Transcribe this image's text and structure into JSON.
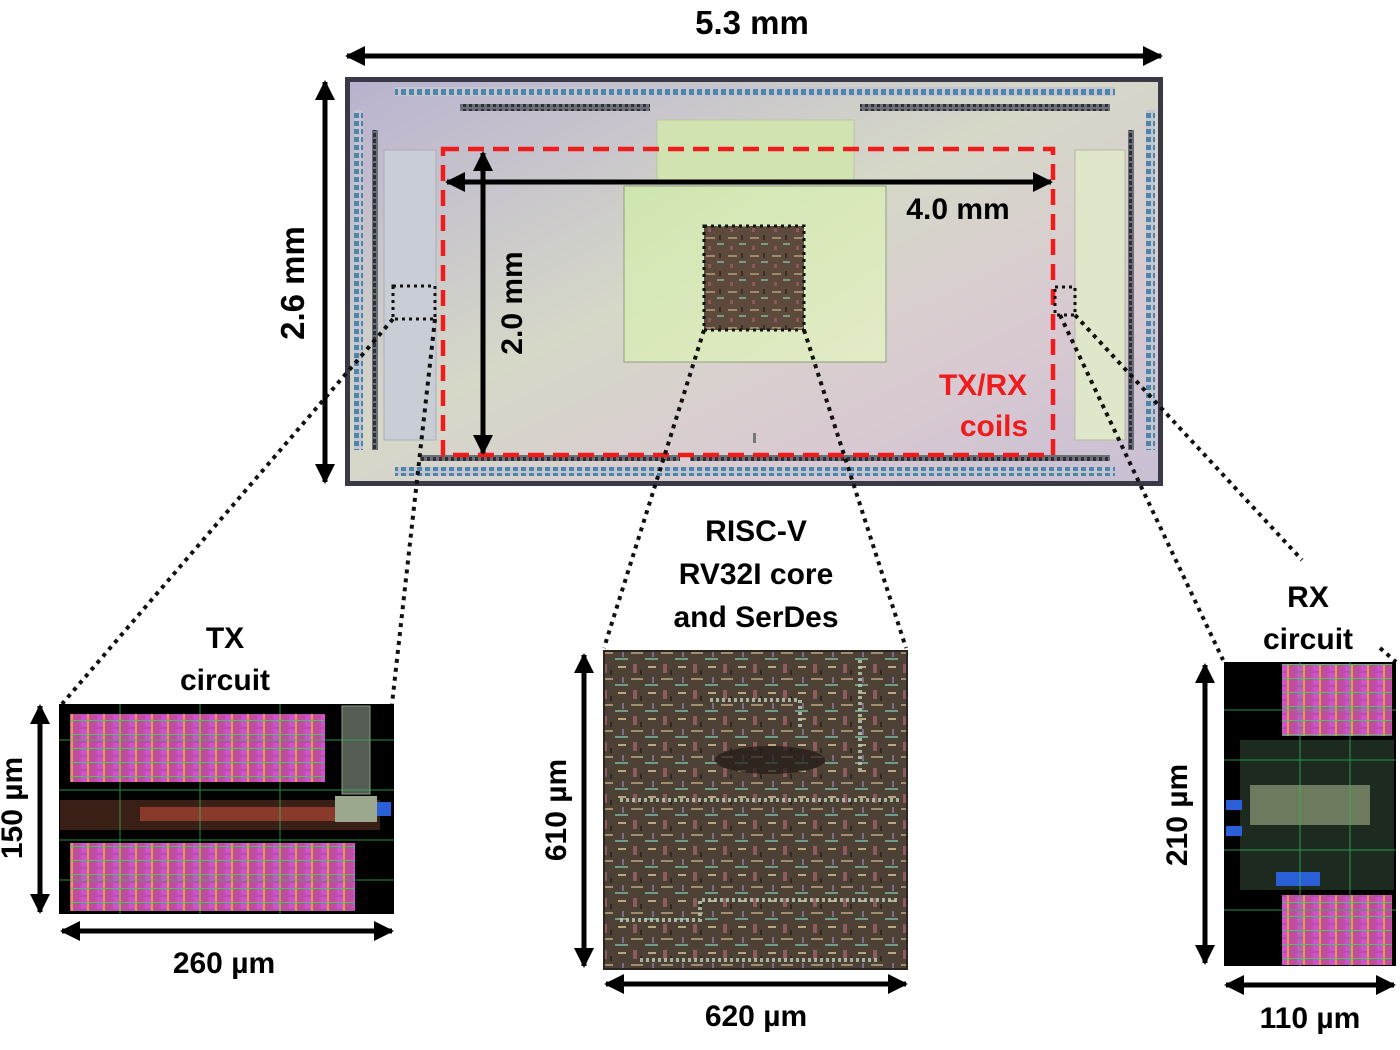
{
  "die": {
    "width_label": "5.3 mm",
    "height_label": "2.6 mm",
    "coil_width_label": "4.0 mm",
    "coil_height_label": "2.0 mm",
    "coil_label_line1": "TX/RX",
    "coil_label_line2": "coils"
  },
  "tx": {
    "title_line1": "TX",
    "title_line2": "circuit",
    "height_label": "150 µm",
    "width_label": "260 µm"
  },
  "core": {
    "title_line1": "RISC-V",
    "title_line2": "RV32I core",
    "title_line3": "and SerDes",
    "height_label": "610 µm",
    "width_label": "620 µm"
  },
  "rx": {
    "title_line1": "RX",
    "title_line2": "circuit",
    "height_label": "210 µm",
    "width_label": "110 µm"
  },
  "colors": {
    "coil_outline": "#ee1c1c",
    "die_base": "#c9c6d8",
    "core_base": "#6b4a3a",
    "layout_bg": "#000000",
    "layout_magenta": "#d63ed6",
    "layout_green": "#2fbf5a",
    "layout_blue": "#2a5fd8"
  }
}
